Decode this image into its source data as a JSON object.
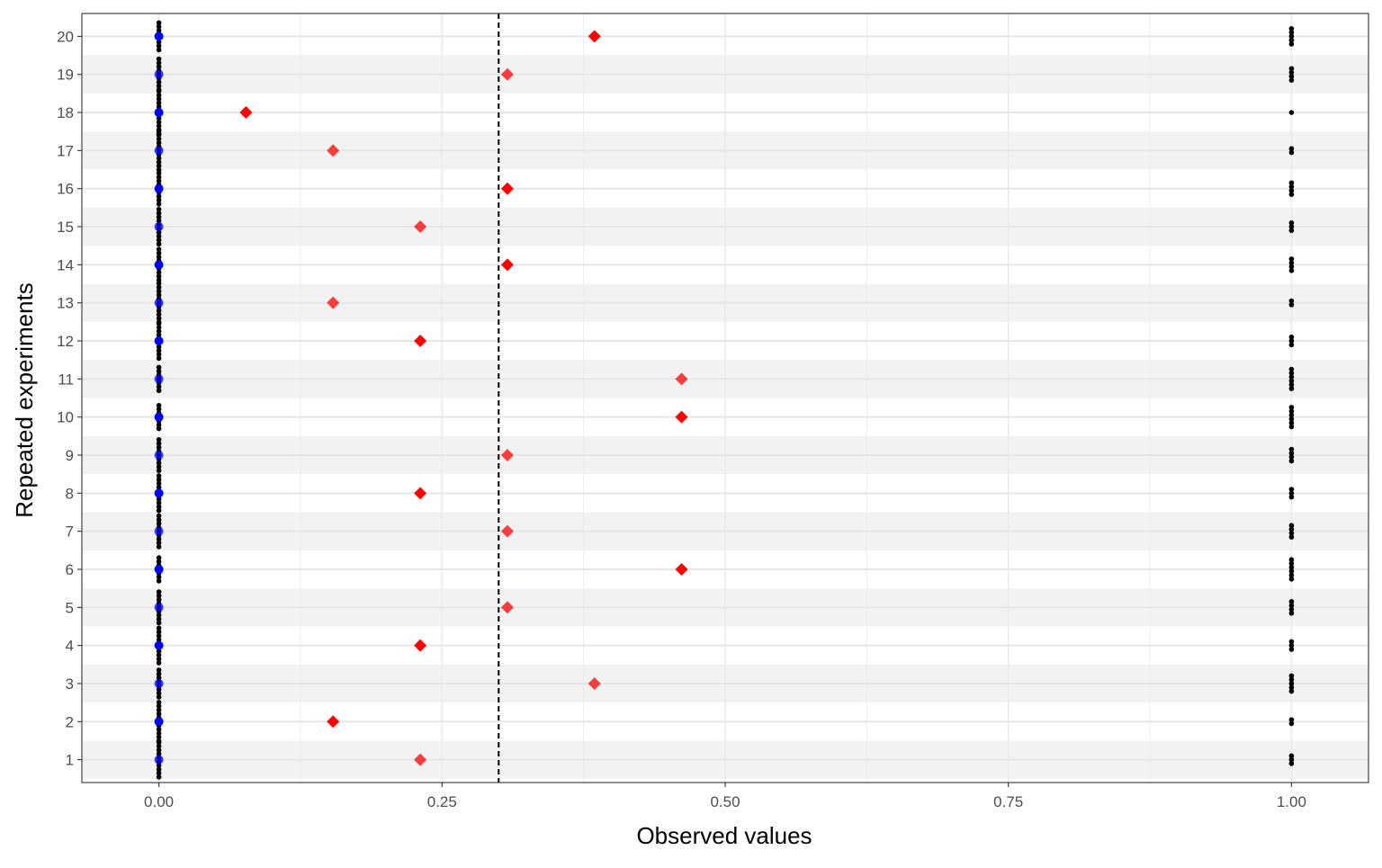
{
  "chart_data": {
    "type": "scatter",
    "title": "",
    "xlabel": "Observed values",
    "ylabel": "Repeated experiments",
    "xlim": [
      -0.068,
      1.068
    ],
    "ylim": [
      0.4,
      20.6
    ],
    "x_ticks": [
      "0.00",
      "0.25",
      "0.50",
      "0.75",
      "1.00"
    ],
    "x_tick_values": [
      0,
      0.25,
      0.5,
      0.75,
      1.0
    ],
    "y_ticks": [
      "1",
      "2",
      "3",
      "4",
      "5",
      "6",
      "7",
      "8",
      "9",
      "10",
      "11",
      "12",
      "13",
      "14",
      "15",
      "16",
      "17",
      "18",
      "19",
      "20"
    ],
    "y_tick_values": [
      1,
      2,
      3,
      4,
      5,
      6,
      7,
      8,
      9,
      10,
      11,
      12,
      13,
      14,
      15,
      16,
      17,
      18,
      19,
      20
    ],
    "grid": true,
    "legend": "none",
    "alternating_row_shading": true,
    "reference_line": {
      "x": 0.3,
      "style": "dashed",
      "color": "#000000"
    },
    "colors": {
      "zero_points": "#0000ff",
      "one_points": "#000000",
      "means": "#ff0000",
      "row_shade": "#f2f2f2",
      "grid": "#ebebeb"
    },
    "series": [
      {
        "marker": "diamond",
        "points": [
          {
            "x": 0.2308,
            "y": 1
          },
          {
            "x": 0.1538,
            "y": 2
          },
          {
            "x": 0.3846,
            "y": 3
          },
          {
            "x": 0.2308,
            "y": 4
          },
          {
            "x": 0.3077,
            "y": 5
          },
          {
            "x": 0.4615,
            "y": 6
          },
          {
            "x": 0.3077,
            "y": 7
          },
          {
            "x": 0.2308,
            "y": 8
          },
          {
            "x": 0.3077,
            "y": 9
          },
          {
            "x": 0.4615,
            "y": 10
          },
          {
            "x": 0.4615,
            "y": 11
          },
          {
            "x": 0.2308,
            "y": 12
          },
          {
            "x": 0.1538,
            "y": 13
          },
          {
            "x": 0.3077,
            "y": 14
          },
          {
            "x": 0.2308,
            "y": 15
          },
          {
            "x": 0.3077,
            "y": 16
          },
          {
            "x": 0.1538,
            "y": 17
          },
          {
            "x": 0.0769,
            "y": 18
          },
          {
            "x": 0.3077,
            "y": 19
          },
          {
            "x": 0.3846,
            "y": 20
          }
        ]
      },
      {
        "marker": "circle",
        "points": [
          {
            "x": 0,
            "y": 1
          },
          {
            "x": 0,
            "y": 2
          },
          {
            "x": 0,
            "y": 3
          },
          {
            "x": 0,
            "y": 4
          },
          {
            "x": 0,
            "y": 5
          },
          {
            "x": 0,
            "y": 6
          },
          {
            "x": 0,
            "y": 7
          },
          {
            "x": 0,
            "y": 8
          },
          {
            "x": 0,
            "y": 9
          },
          {
            "x": 0,
            "y": 10
          },
          {
            "x": 0,
            "y": 11
          },
          {
            "x": 0,
            "y": 12
          },
          {
            "x": 0,
            "y": 13
          },
          {
            "x": 0,
            "y": 14
          },
          {
            "x": 0,
            "y": 15
          },
          {
            "x": 0,
            "y": 16
          },
          {
            "x": 0,
            "y": 17
          },
          {
            "x": 0,
            "y": 18
          },
          {
            "x": 0,
            "y": 19
          },
          {
            "x": 0,
            "y": 20
          }
        ]
      },
      {
        "marker": "dot",
        "points_per_row": [
          {
            "y": 1,
            "x0_count": 10,
            "x1_count": 3
          },
          {
            "y": 2,
            "x0_count": 11,
            "x1_count": 2
          },
          {
            "y": 3,
            "x0_count": 8,
            "x1_count": 5
          },
          {
            "y": 4,
            "x0_count": 10,
            "x1_count": 3
          },
          {
            "y": 5,
            "x0_count": 9,
            "x1_count": 4
          },
          {
            "y": 6,
            "x0_count": 7,
            "x1_count": 6
          },
          {
            "y": 7,
            "x0_count": 9,
            "x1_count": 4
          },
          {
            "y": 8,
            "x0_count": 10,
            "x1_count": 3
          },
          {
            "y": 9,
            "x0_count": 9,
            "x1_count": 4
          },
          {
            "y": 10,
            "x0_count": 7,
            "x1_count": 6
          },
          {
            "y": 11,
            "x0_count": 7,
            "x1_count": 6
          },
          {
            "y": 12,
            "x0_count": 10,
            "x1_count": 3
          },
          {
            "y": 13,
            "x0_count": 11,
            "x1_count": 2
          },
          {
            "y": 14,
            "x0_count": 9,
            "x1_count": 4
          },
          {
            "y": 15,
            "x0_count": 10,
            "x1_count": 3
          },
          {
            "y": 16,
            "x0_count": 9,
            "x1_count": 4
          },
          {
            "y": 17,
            "x0_count": 11,
            "x1_count": 2
          },
          {
            "y": 18,
            "x0_count": 12,
            "x1_count": 1
          },
          {
            "y": 19,
            "x0_count": 9,
            "x1_count": 4
          },
          {
            "y": 20,
            "x0_count": 8,
            "x1_count": 5
          }
        ]
      }
    ]
  }
}
